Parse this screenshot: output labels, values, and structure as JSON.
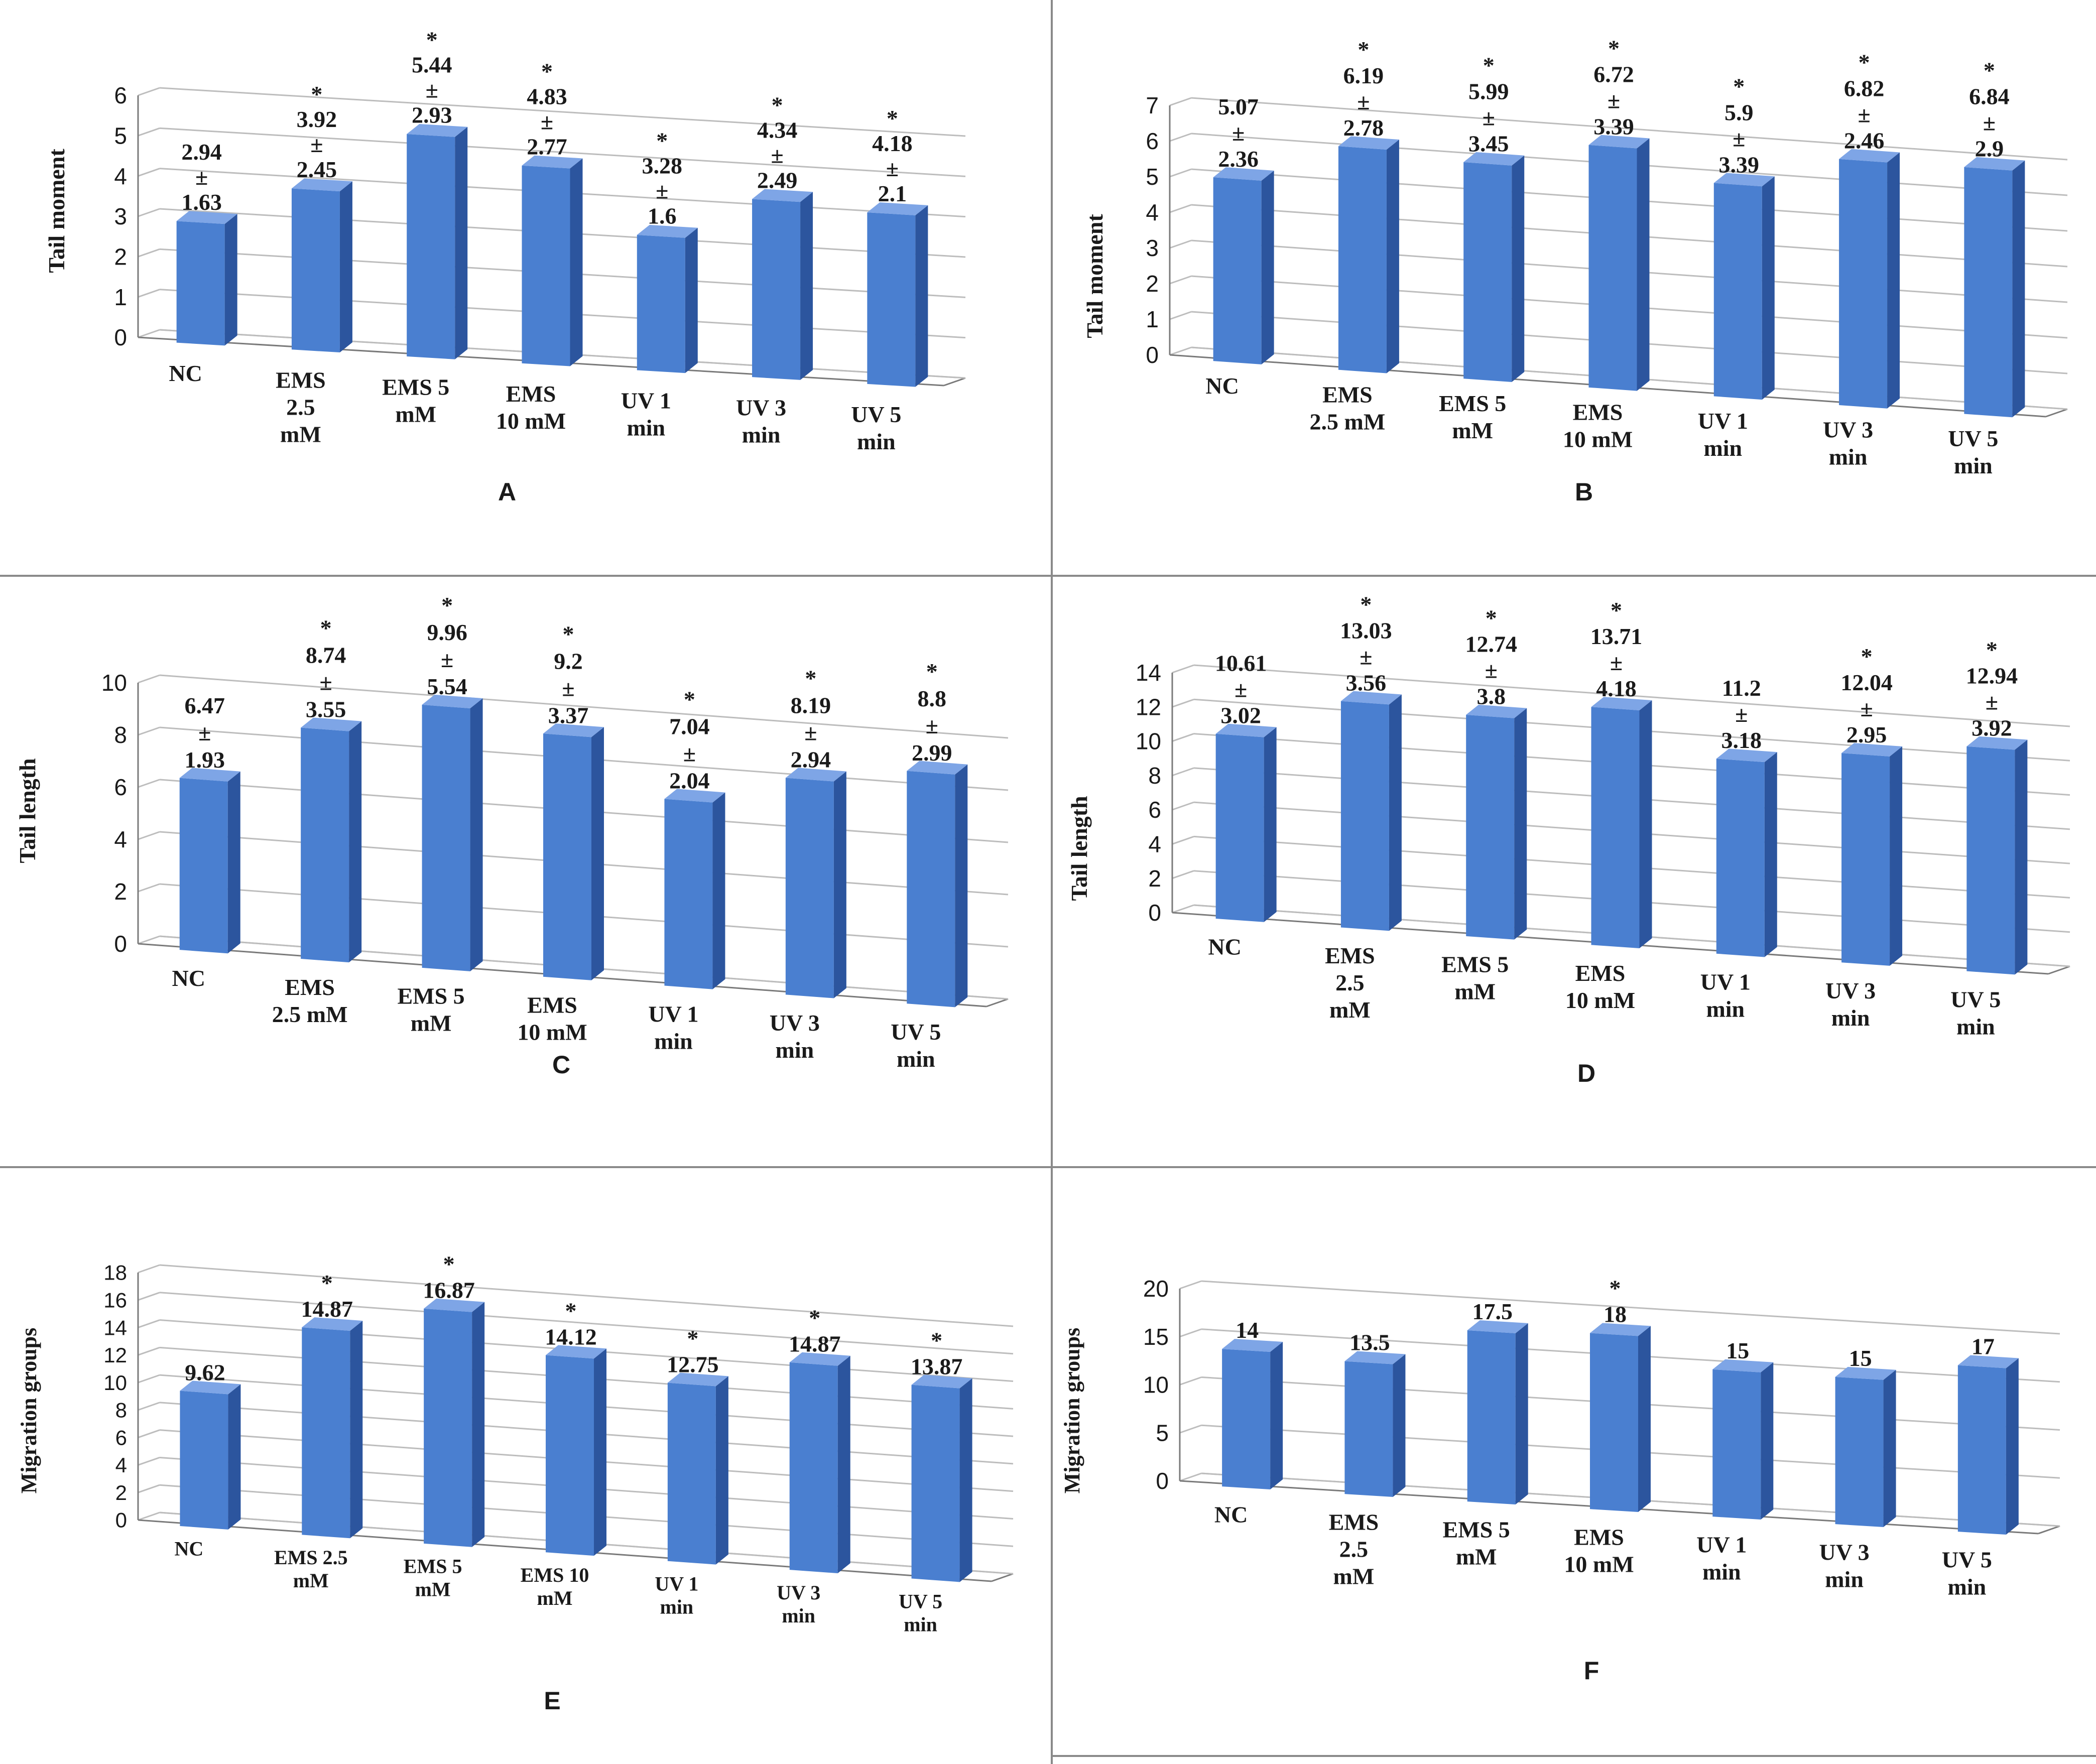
{
  "figure": {
    "colors": {
      "bar_front": "#4a7fd0",
      "bar_side": "#2c559e",
      "bar_top": "#7ea5e6",
      "grid": "#bdbdbd",
      "text": "#1a1a1a"
    }
  },
  "chart_data": [
    {
      "panel": "A",
      "type": "bar",
      "ylabel": "Tail moment",
      "ylim": [
        0,
        6
      ],
      "ticks": [
        "0",
        "1",
        "2",
        "3",
        "4",
        "5",
        "6"
      ],
      "grid": true,
      "categories": [
        [
          "NC"
        ],
        [
          "EMS",
          "2.5",
          "mM"
        ],
        [
          "EMS 5",
          "mM"
        ],
        [
          "EMS",
          "10 mM"
        ],
        [
          "UV 1",
          "min"
        ],
        [
          "UV 3",
          "min"
        ],
        [
          "UV 5",
          "min"
        ]
      ],
      "values": [
        2.94,
        3.92,
        5.44,
        4.83,
        3.28,
        4.34,
        4.18
      ],
      "labels": [
        [
          "2.94",
          "±",
          "1.63"
        ],
        [
          "*",
          "3.92",
          "±",
          "2.45"
        ],
        [
          "*",
          "5.44",
          "±",
          "2.93"
        ],
        [
          "*",
          "4.83",
          "±",
          "2.77"
        ],
        [
          "*",
          "3.28",
          "±",
          "1.6"
        ],
        [
          "*",
          "4.34",
          "±",
          "2.49"
        ],
        [
          "*",
          "4.18",
          "±",
          "2.1"
        ]
      ]
    },
    {
      "panel": "B",
      "type": "bar",
      "ylabel": "Tail moment",
      "ylim": [
        0,
        7
      ],
      "ticks": [
        "0",
        "1",
        "2",
        "3",
        "4",
        "5",
        "6",
        "7"
      ],
      "grid": true,
      "categories": [
        [
          "NC"
        ],
        [
          "EMS",
          "2.5 mM"
        ],
        [
          "EMS 5",
          "mM"
        ],
        [
          "EMS",
          "10 mM"
        ],
        [
          "UV 1",
          "min"
        ],
        [
          "UV 3",
          "min"
        ],
        [
          "UV 5",
          "min"
        ]
      ],
      "values": [
        5.07,
        6.19,
        5.99,
        6.72,
        5.9,
        6.82,
        6.84
      ],
      "labels": [
        [
          "5.07",
          "±",
          "2.36"
        ],
        [
          "*",
          "6.19",
          "±",
          "2.78"
        ],
        [
          "*",
          "5.99",
          "±",
          "3.45"
        ],
        [
          "*",
          "6.72",
          "±",
          "3.39"
        ],
        [
          "*",
          "5.9",
          "±",
          "3.39"
        ],
        [
          "*",
          "6.82",
          "±",
          "2.46"
        ],
        [
          "*",
          "6.84",
          "±",
          "2.9"
        ]
      ]
    },
    {
      "panel": "C",
      "type": "bar",
      "ylabel": "Tail length",
      "ylim": [
        0,
        10
      ],
      "ticks": [
        "0",
        "2",
        "4",
        "6",
        "8",
        "10"
      ],
      "grid": true,
      "categories": [
        [
          "NC"
        ],
        [
          "EMS",
          "2.5 mM"
        ],
        [
          "EMS 5",
          "mM"
        ],
        [
          "EMS",
          "10 mM"
        ],
        [
          "UV 1",
          "min"
        ],
        [
          "UV 3",
          "min"
        ],
        [
          "UV 5",
          "min"
        ]
      ],
      "values": [
        6.47,
        8.74,
        9.96,
        9.2,
        7.04,
        8.19,
        8.8
      ],
      "labels": [
        [
          "6.47",
          "±",
          "1.93"
        ],
        [
          "*",
          "8.74",
          "±",
          "3.55"
        ],
        [
          "*",
          "9.96",
          "±",
          "5.54"
        ],
        [
          "*",
          "9.2",
          "±",
          "3.37"
        ],
        [
          "*",
          "7.04",
          "±",
          "2.04"
        ],
        [
          "*",
          "8.19",
          "±",
          "2.94"
        ],
        [
          "*",
          "8.8",
          "±",
          "2.99"
        ]
      ]
    },
    {
      "panel": "D",
      "type": "bar",
      "ylabel": "Tail length",
      "ylim": [
        0,
        14
      ],
      "ticks": [
        "0",
        "2",
        "4",
        "6",
        "8",
        "10",
        "12",
        "14"
      ],
      "grid": true,
      "categories": [
        [
          "NC"
        ],
        [
          "EMS",
          "2.5",
          "mM"
        ],
        [
          "EMS 5",
          "mM"
        ],
        [
          "EMS",
          "10 mM"
        ],
        [
          "UV 1",
          "min"
        ],
        [
          "UV 3",
          "min"
        ],
        [
          "UV 5",
          "min"
        ]
      ],
      "values": [
        10.61,
        13.03,
        12.74,
        13.71,
        11.2,
        12.04,
        12.94
      ],
      "labels": [
        [
          "10.61",
          "±",
          "3.02"
        ],
        [
          "*",
          "13.03",
          "±",
          "3.56"
        ],
        [
          "*",
          "12.74",
          "±",
          "3.8"
        ],
        [
          "*",
          "13.71",
          "±",
          "4.18"
        ],
        [
          "11.2",
          "±",
          "3.18"
        ],
        [
          "*",
          "12.04",
          "±",
          "2.95"
        ],
        [
          "*",
          "12.94",
          "±",
          "3.92"
        ]
      ]
    },
    {
      "panel": "E",
      "type": "bar",
      "ylabel": "Migration groups",
      "ylim": [
        0,
        18
      ],
      "ticks": [
        "0",
        "2",
        "4",
        "6",
        "8",
        "10",
        "12",
        "14",
        "16",
        "18"
      ],
      "grid": true,
      "categories": [
        [
          "NC"
        ],
        [
          "EMS 2.5",
          "mM"
        ],
        [
          "EMS 5",
          "mM"
        ],
        [
          "EMS 10",
          "mM"
        ],
        [
          "UV 1",
          "min"
        ],
        [
          "UV 3",
          "min"
        ],
        [
          "UV 5",
          "min"
        ]
      ],
      "values": [
        9.62,
        14.87,
        16.87,
        14.12,
        12.75,
        14.87,
        13.87
      ],
      "labels": [
        [
          "9.62"
        ],
        [
          "*",
          "14.87"
        ],
        [
          "*",
          "16.87"
        ],
        [
          "*",
          "14.12"
        ],
        [
          "*",
          "12.75"
        ],
        [
          "*",
          "14.87"
        ],
        [
          "*",
          "13.87"
        ]
      ]
    },
    {
      "panel": "F",
      "type": "bar",
      "ylabel": "Migration groups",
      "ylim": [
        0,
        20
      ],
      "ticks": [
        "0",
        "5",
        "10",
        "15",
        "20"
      ],
      "grid": true,
      "categories": [
        [
          "NC"
        ],
        [
          "EMS",
          "2.5",
          "mM"
        ],
        [
          "EMS 5",
          "mM"
        ],
        [
          "EMS",
          "10 mM"
        ],
        [
          "UV 1",
          "min"
        ],
        [
          "UV 3",
          "min"
        ],
        [
          "UV 5",
          "min"
        ]
      ],
      "values": [
        14,
        13.5,
        17.5,
        18,
        15,
        15,
        17
      ],
      "labels": [
        [
          "14"
        ],
        [
          "13.5"
        ],
        [
          "17.5"
        ],
        [
          "*",
          "18"
        ],
        [
          "15"
        ],
        [
          "15"
        ],
        [
          "17"
        ]
      ]
    }
  ]
}
